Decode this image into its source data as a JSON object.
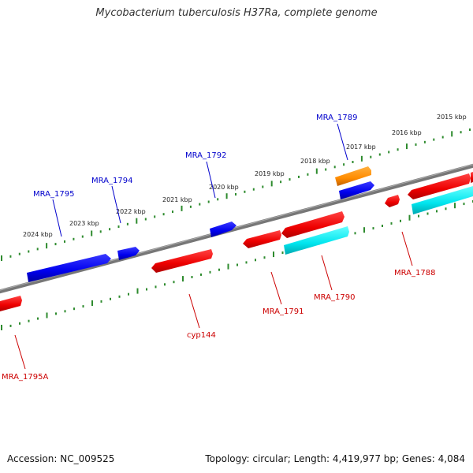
{
  "title": "Mycobacterium tuberculosis H37Ra, complete genome",
  "footer": {
    "accession": "Accession: NC_009525",
    "topology": "Topology: circular; Length: 4,419,977 bp; Genes: 4,084"
  },
  "colors": {
    "backbone": "#7a7a7a",
    "ticks": "#2e8b2e",
    "forward_gene": "#0000ee",
    "reverse_gene": "#ee0000",
    "rrna_like": "#00e5ee",
    "other_gene": "#ff8c00",
    "forward_label": "#0000cc",
    "reverse_label": "#cc0000"
  },
  "kbp_labels": [
    "2015 kbp",
    "2016 kbp",
    "2017 kbp",
    "2018 kbp",
    "2019 kbp",
    "2020 kbp",
    "2021 kbp",
    "2022 kbp",
    "2023 kbp",
    "2024 kbp"
  ],
  "gene_labels": [
    {
      "text": "MRA_1789",
      "strand": "forward"
    },
    {
      "text": "MRA_1792",
      "strand": "forward"
    },
    {
      "text": "MRA_1794",
      "strand": "forward"
    },
    {
      "text": "MRA_1795",
      "strand": "forward"
    },
    {
      "text": "MRA_1788",
      "strand": "reverse"
    },
    {
      "text": "MRA_1790",
      "strand": "reverse"
    },
    {
      "text": "MRA_1791",
      "strand": "reverse"
    },
    {
      "text": "cyp144",
      "strand": "reverse"
    },
    {
      "text": "MRA_1795A",
      "strand": "reverse"
    }
  ]
}
